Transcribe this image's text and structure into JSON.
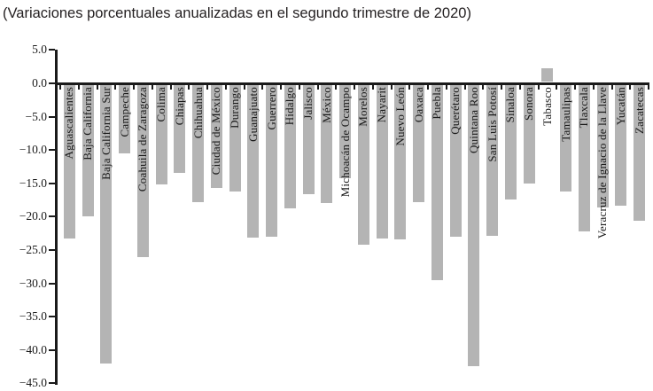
{
  "title": "(Variaciones porcentuales anualizadas en el segundo trimestre de 2020)",
  "chart_data": {
    "type": "bar",
    "title": "(Variaciones porcentuales anualizadas en el segundo trimestre de 2020)",
    "xlabel": "",
    "ylabel": "",
    "ylim": [
      -45.0,
      5.0
    ],
    "ytick_step": 5.0,
    "yticks": [
      5.0,
      0.0,
      -5.0,
      -10.0,
      -15.0,
      -20.0,
      -25.0,
      -30.0,
      -35.0,
      -40.0,
      -45.0
    ],
    "ytick_labels": [
      "5.0",
      "0.0",
      "−5.0",
      "−10.0",
      "−15.0",
      "−20.0",
      "−25.0",
      "−30.0",
      "−35.0",
      "−40.0",
      "−45.0"
    ],
    "grid": false,
    "legend": null,
    "bar_color": "#b4b4b4",
    "axis_color": "#1a1a1a",
    "categories": [
      "Aguascalientes",
      "Baja California",
      "Baja California Sur",
      "Campeche",
      "Coahuila de Zaragoza",
      "Colima",
      "Chiapas",
      "Chihuahua",
      "Ciudad de México",
      "Durango",
      "Guanajuato",
      "Guerrero",
      "Hidalgo",
      "Jalisco",
      "México",
      "Michoacán de Ocampo",
      "Morelos",
      "Nayarit",
      "Nuevo León",
      "Oaxaca",
      "Puebla",
      "Querétaro",
      "Quintana Roo",
      "San Luis Potosí",
      "Sinaloa",
      "Sonora",
      "Tabasco",
      "Tamaulipas",
      "Tlaxcala",
      "Veracruz de Ignacio de la Llave",
      "Yucatán",
      "Zacatecas"
    ],
    "values": [
      -23.1,
      -19.7,
      -41.8,
      -10.3,
      -25.9,
      -15.0,
      -13.2,
      -17.6,
      -15.5,
      -16.0,
      -22.9,
      -22.8,
      -18.6,
      -16.4,
      -17.8,
      -14.0,
      -24.0,
      -23.1,
      -23.2,
      -17.6,
      -29.3,
      -22.8,
      -42.2,
      -22.7,
      -17.2,
      -14.8,
      2.0,
      -16.0,
      -22.0,
      -18.4,
      -18.1,
      -20.4
    ]
  }
}
